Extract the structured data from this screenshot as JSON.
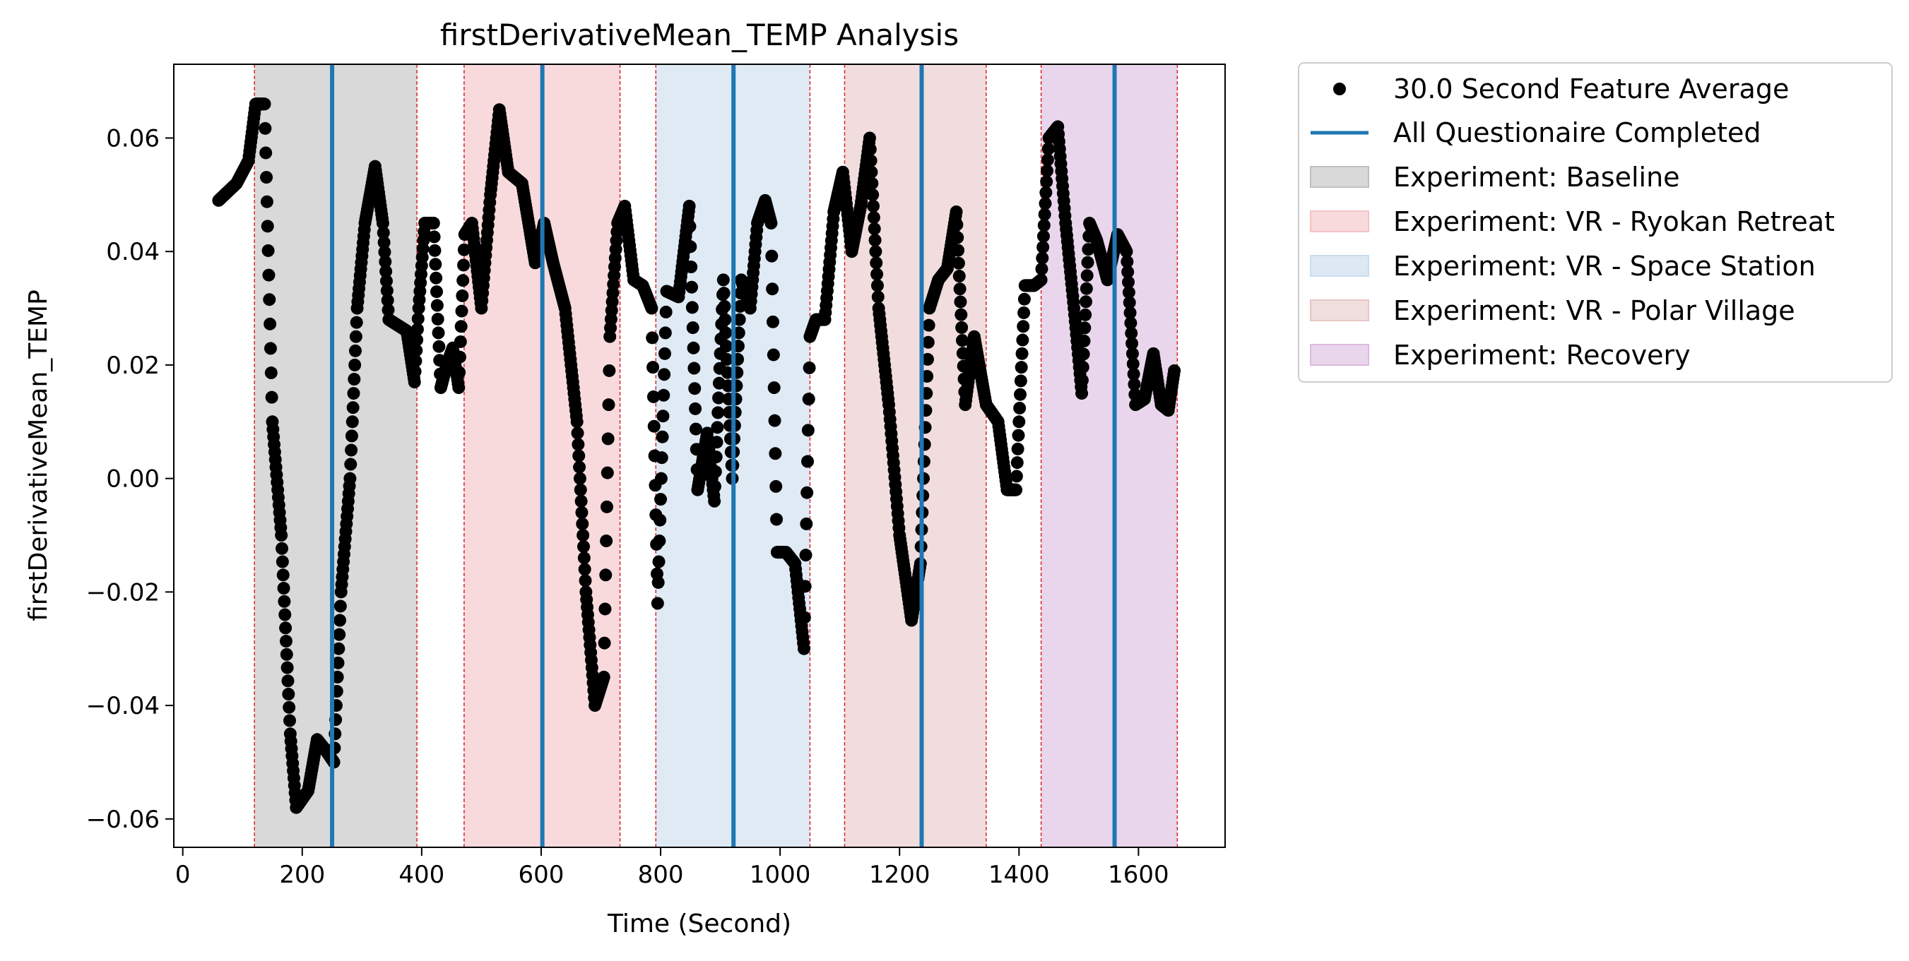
{
  "chart_data": {
    "type": "scatter",
    "title": "firstDerivativeMean_TEMP Analysis",
    "xlabel": "Time (Second)",
    "ylabel": "firstDerivativeMean_TEMP",
    "xlim": [
      -15,
      1745
    ],
    "ylim": [
      -0.065,
      0.073
    ],
    "xticks": [
      0,
      200,
      400,
      600,
      800,
      1000,
      1200,
      1400,
      1600
    ],
    "xtick_labels": [
      "0",
      "200",
      "400",
      "600",
      "800",
      "1000",
      "1200",
      "1400",
      "1600"
    ],
    "yticks": [
      -0.06,
      -0.04,
      -0.02,
      0.0,
      0.02,
      0.04,
      0.06
    ],
    "ytick_labels": [
      "−0.06",
      "−0.04",
      "−0.02",
      "0.00",
      "0.02",
      "0.04",
      "0.06"
    ],
    "grid": false,
    "legend_position": "outside-right",
    "series": [
      {
        "name": "30.0 Second Feature Average",
        "kind": "points",
        "color": "#000000",
        "anchors": [
          [
            60,
            0.049
          ],
          [
            90,
            0.052
          ],
          [
            110,
            0.056
          ],
          [
            122,
            0.066
          ],
          [
            137,
            0.066
          ],
          [
            150,
            0.01
          ],
          [
            165,
            -0.01
          ],
          [
            180,
            -0.045
          ],
          [
            190,
            -0.058
          ],
          [
            210,
            -0.055
          ],
          [
            225,
            -0.046
          ],
          [
            240,
            -0.048
          ],
          [
            253,
            -0.05
          ],
          [
            265,
            -0.02
          ],
          [
            280,
            0.0
          ],
          [
            292,
            0.03
          ],
          [
            305,
            0.045
          ],
          [
            322,
            0.055
          ],
          [
            335,
            0.045
          ],
          [
            345,
            0.028
          ],
          [
            360,
            0.027
          ],
          [
            375,
            0.026
          ],
          [
            388,
            0.017
          ],
          [
            395,
            0.03
          ],
          [
            405,
            0.045
          ],
          [
            420,
            0.045
          ],
          [
            432,
            0.016
          ],
          [
            442,
            0.02
          ],
          [
            452,
            0.023
          ],
          [
            462,
            0.016
          ],
          [
            472,
            0.043
          ],
          [
            484,
            0.045
          ],
          [
            500,
            0.03
          ],
          [
            515,
            0.05
          ],
          [
            530,
            0.065
          ],
          [
            545,
            0.054
          ],
          [
            568,
            0.052
          ],
          [
            590,
            0.038
          ],
          [
            605,
            0.045
          ],
          [
            620,
            0.038
          ],
          [
            640,
            0.03
          ],
          [
            660,
            0.01
          ],
          [
            675,
            -0.02
          ],
          [
            690,
            -0.04
          ],
          [
            705,
            -0.035
          ],
          [
            715,
            0.025
          ],
          [
            728,
            0.045
          ],
          [
            740,
            0.048
          ],
          [
            755,
            0.035
          ],
          [
            770,
            0.034
          ],
          [
            785,
            0.03
          ],
          [
            795,
            -0.022
          ],
          [
            810,
            0.033
          ],
          [
            830,
            0.032
          ],
          [
            848,
            0.048
          ],
          [
            862,
            -0.002
          ],
          [
            878,
            0.008
          ],
          [
            890,
            -0.004
          ],
          [
            905,
            0.035
          ],
          [
            920,
            0.0
          ],
          [
            935,
            0.035
          ],
          [
            950,
            0.03
          ],
          [
            962,
            0.045
          ],
          [
            975,
            0.049
          ],
          [
            985,
            0.045
          ],
          [
            995,
            -0.013
          ],
          [
            1010,
            -0.013
          ],
          [
            1025,
            -0.015
          ],
          [
            1040,
            -0.03
          ],
          [
            1050,
            0.025
          ],
          [
            1060,
            0.028
          ],
          [
            1075,
            0.028
          ],
          [
            1090,
            0.047
          ],
          [
            1105,
            0.054
          ],
          [
            1120,
            0.04
          ],
          [
            1135,
            0.048
          ],
          [
            1150,
            0.06
          ],
          [
            1165,
            0.03
          ],
          [
            1182,
            0.013
          ],
          [
            1200,
            -0.01
          ],
          [
            1220,
            -0.025
          ],
          [
            1235,
            -0.015
          ],
          [
            1250,
            0.03
          ],
          [
            1265,
            0.035
          ],
          [
            1280,
            0.037
          ],
          [
            1295,
            0.047
          ],
          [
            1310,
            0.013
          ],
          [
            1325,
            0.025
          ],
          [
            1345,
            0.013
          ],
          [
            1365,
            0.01
          ],
          [
            1380,
            -0.002
          ],
          [
            1395,
            -0.002
          ],
          [
            1410,
            0.034
          ],
          [
            1425,
            0.034
          ],
          [
            1437,
            0.035
          ],
          [
            1450,
            0.06
          ],
          [
            1465,
            0.062
          ],
          [
            1478,
            0.045
          ],
          [
            1492,
            0.03
          ],
          [
            1505,
            0.015
          ],
          [
            1518,
            0.045
          ],
          [
            1530,
            0.042
          ],
          [
            1548,
            0.035
          ],
          [
            1565,
            0.043
          ],
          [
            1580,
            0.04
          ],
          [
            1595,
            0.013
          ],
          [
            1610,
            0.014
          ],
          [
            1625,
            0.022
          ],
          [
            1638,
            0.013
          ],
          [
            1650,
            0.012
          ],
          [
            1660,
            0.019
          ]
        ]
      },
      {
        "name": "All Questionaire Completed",
        "kind": "vlines",
        "color": "#1f77b4",
        "x": [
          250,
          602,
          922,
          1237,
          1560
        ]
      }
    ],
    "spans": [
      {
        "name": "Experiment: Baseline",
        "x0": 120,
        "x1": 392,
        "color": "#bfbfbf"
      },
      {
        "name": "Experiment: VR - Ryokan Retreat",
        "x0": 471,
        "x1": 732,
        "color": "#f4c2c6"
      },
      {
        "name": "Experiment: VR - Space Station",
        "x0": 792,
        "x1": 1050,
        "color": "#c9dcee"
      },
      {
        "name": "Experiment: VR - Polar Village",
        "x0": 1108,
        "x1": 1345,
        "color": "#e7c6c6"
      },
      {
        "name": "Experiment: Recovery",
        "x0": 1437,
        "x1": 1665,
        "color": "#dcbadf"
      }
    ],
    "span_edge_color": "#d62728"
  }
}
